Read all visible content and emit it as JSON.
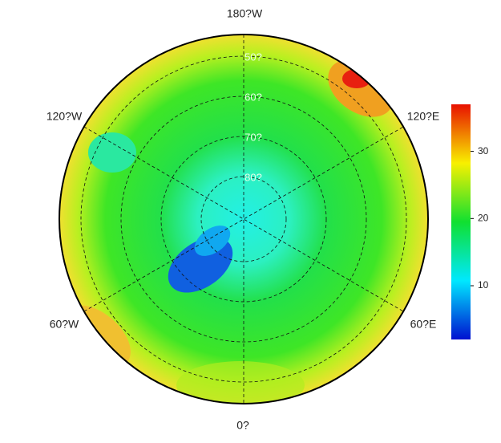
{
  "map": {
    "longitude_labels": [
      "180?W",
      "120?W",
      "120?E",
      "60?W",
      "60?E",
      "0?"
    ],
    "latitude_labels": [
      "50?",
      "60?",
      "70?",
      "80?"
    ],
    "colorbar": {
      "lim": [
        2,
        37
      ],
      "ticks": [
        10,
        20,
        30
      ]
    }
  }
}
